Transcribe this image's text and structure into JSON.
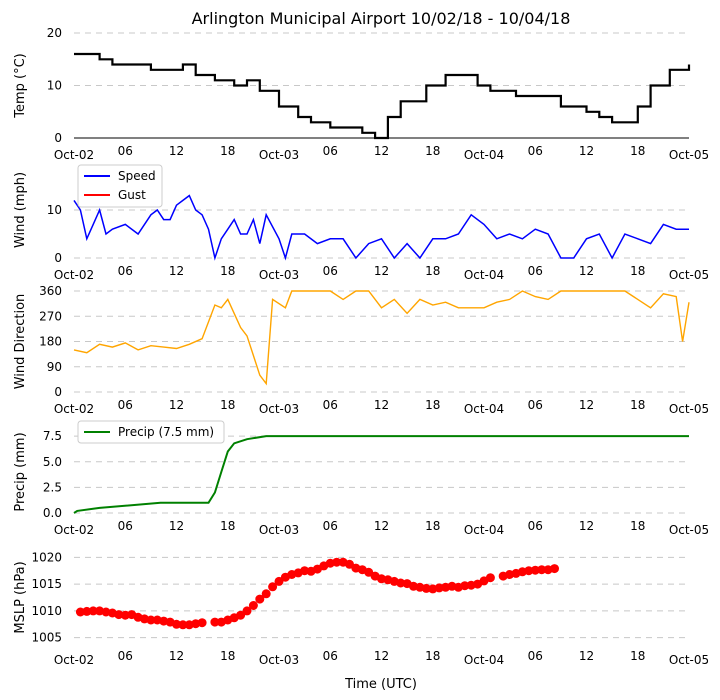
{
  "title": "Arlington Municipal Airport 10/02/18 - 10/04/18",
  "xlabel": "Time (UTC)",
  "x_ticks": [
    "Oct-02",
    "06",
    "12",
    "18",
    "Oct-03",
    "06",
    "12",
    "18",
    "Oct-04",
    "06",
    "12",
    "18",
    "Oct-05"
  ],
  "colors": {
    "temp": "#000000",
    "speed": "#0000ff",
    "gust": "#ff0000",
    "direction": "#ffa500",
    "precip": "#008000",
    "mslp": "#ff0000",
    "grid": "#c8c8c8"
  },
  "chart_data": [
    {
      "type": "line",
      "name": "temperature",
      "ylabel": "Temp ($^\\circ$C)",
      "ylabel_text": "Temp (°C)",
      "ylim": [
        0,
        20
      ],
      "y_ticks": [
        "0",
        "10",
        "20"
      ],
      "x_hours": [
        0,
        4,
        6,
        12,
        16,
        17,
        19,
        22,
        25,
        27,
        29,
        32,
        35,
        37,
        40,
        43,
        45,
        47,
        49,
        51,
        55,
        58,
        60,
        63,
        65,
        69,
        72,
        76,
        80,
        82,
        84,
        86,
        88,
        90,
        93,
        96
      ],
      "values": [
        16,
        15,
        14,
        13,
        13,
        14,
        12,
        11,
        10,
        11,
        9,
        6,
        4,
        3,
        2,
        2,
        1,
        0,
        4,
        7,
        10,
        12,
        12,
        10,
        9,
        8,
        8,
        6,
        5,
        4,
        3,
        3,
        6,
        10,
        13,
        14
      ]
    },
    {
      "type": "line",
      "name": "wind",
      "ylabel": "Wind (mph)",
      "ylim": [
        0,
        20
      ],
      "y_ticks": [
        "0",
        "10"
      ],
      "legend": [
        "Speed",
        "Gust"
      ],
      "series": [
        {
          "name": "Speed",
          "x_hours": [
            0,
            1,
            2,
            3,
            4,
            5,
            6,
            8,
            10,
            12,
            13,
            14,
            15,
            16,
            17,
            18,
            19,
            20,
            21,
            22,
            23,
            24,
            25,
            26,
            27,
            28,
            29,
            30,
            32,
            33,
            34,
            36,
            38,
            40,
            42,
            44,
            46,
            48,
            50,
            52,
            54,
            56,
            58,
            60,
            62,
            64,
            66,
            68,
            70,
            72,
            74,
            76,
            78,
            80,
            82,
            84,
            86,
            88,
            90,
            92,
            94,
            96
          ],
          "values": [
            12,
            10,
            4,
            7,
            10,
            5,
            6,
            7,
            5,
            9,
            10,
            8,
            8,
            11,
            12,
            13,
            10,
            9,
            6,
            0,
            4,
            6,
            8,
            5,
            5,
            8,
            3,
            9,
            4,
            0,
            5,
            5,
            3,
            4,
            4,
            0,
            3,
            4,
            0,
            3,
            0,
            4,
            4,
            5,
            9,
            7,
            4,
            5,
            4,
            6,
            5,
            0,
            0,
            4,
            5,
            0,
            5,
            4,
            3,
            7,
            6,
            6
          ]
        },
        {
          "name": "Gust",
          "x_hours": [],
          "values": []
        }
      ]
    },
    {
      "type": "line",
      "name": "direction",
      "ylabel": "Wind Direction",
      "ylim": [
        0,
        360
      ],
      "y_ticks": [
        "0",
        "90",
        "180",
        "270",
        "360"
      ],
      "x_hours": [
        0,
        2,
        4,
        6,
        8,
        10,
        12,
        14,
        16,
        18,
        20,
        21,
        22,
        23,
        24,
        26,
        27,
        28,
        29,
        30,
        31,
        33,
        34,
        36,
        38,
        40,
        42,
        44,
        46,
        48,
        50,
        52,
        54,
        56,
        58,
        60,
        62,
        64,
        66,
        68,
        70,
        72,
        74,
        76,
        78,
        80,
        82,
        84,
        86,
        88,
        90,
        92,
        94,
        95,
        96
      ],
      "values": [
        150,
        140,
        170,
        160,
        175,
        150,
        165,
        160,
        155,
        170,
        190,
        250,
        310,
        300,
        330,
        230,
        200,
        130,
        60,
        30,
        330,
        300,
        360,
        360,
        360,
        360,
        330,
        360,
        360,
        300,
        330,
        280,
        330,
        310,
        320,
        300,
        300,
        300,
        320,
        330,
        360,
        340,
        330,
        360,
        360,
        360,
        360,
        360,
        360,
        330,
        300,
        350,
        340,
        180,
        320
      ]
    },
    {
      "type": "line",
      "name": "precipitation",
      "ylabel": "Precip (mm)",
      "ylim": [
        0,
        8
      ],
      "y_ticks": [
        "0.0",
        "2.5",
        "5.0",
        "7.5"
      ],
      "legend": [
        "Precip (7.5 mm)"
      ],
      "x_hours": [
        0,
        0.5,
        4,
        13.5,
        21,
        22,
        23,
        24,
        25,
        27,
        30,
        96
      ],
      "values": [
        0,
        0.2,
        0.5,
        1.0,
        1.0,
        2.0,
        4.0,
        6.0,
        6.8,
        7.2,
        7.5,
        7.5
      ]
    },
    {
      "type": "scatter",
      "name": "mslp",
      "ylabel": "MSLP (hPa)",
      "ylim": [
        1004,
        1021
      ],
      "y_ticks": [
        "1005",
        "1010",
        "1015",
        "1020"
      ],
      "x_hours": [
        1,
        2,
        3,
        4,
        5,
        6,
        7,
        8,
        9,
        10,
        11,
        12,
        13,
        14,
        15,
        16,
        17,
        18,
        19,
        20,
        22,
        23,
        24,
        25,
        26,
        27,
        28,
        29,
        30,
        31,
        32,
        33,
        34,
        35,
        36,
        37,
        38,
        39,
        40,
        41,
        42,
        43,
        44,
        45,
        46,
        47,
        48,
        49,
        50,
        51,
        52,
        53,
        54,
        55,
        56,
        57,
        58,
        59,
        60,
        61,
        62,
        63,
        64,
        65,
        67,
        68,
        69,
        70,
        71,
        72,
        73,
        74,
        75
      ],
      "values": [
        1009.8,
        1009.9,
        1010.0,
        1010.0,
        1009.8,
        1009.6,
        1009.3,
        1009.2,
        1009.3,
        1008.8,
        1008.5,
        1008.3,
        1008.3,
        1008.1,
        1007.9,
        1007.5,
        1007.4,
        1007.4,
        1007.6,
        1007.8,
        1007.9,
        1007.9,
        1008.3,
        1008.7,
        1009.2,
        1010.0,
        1011.0,
        1012.2,
        1013.2,
        1014.5,
        1015.5,
        1016.3,
        1016.8,
        1017.1,
        1017.5,
        1017.4,
        1017.8,
        1018.4,
        1018.9,
        1019.1,
        1019.1,
        1018.7,
        1018.0,
        1017.7,
        1017.2,
        1016.5,
        1016.0,
        1015.8,
        1015.5,
        1015.2,
        1015.1,
        1014.6,
        1014.4,
        1014.2,
        1014.1,
        1014.3,
        1014.4,
        1014.6,
        1014.4,
        1014.7,
        1014.8,
        1015.0,
        1015.6,
        1016.2,
        1016.5,
        1016.8,
        1017.0,
        1017.3,
        1017.5,
        1017.6,
        1017.7,
        1017.7,
        1017.9
      ]
    }
  ]
}
